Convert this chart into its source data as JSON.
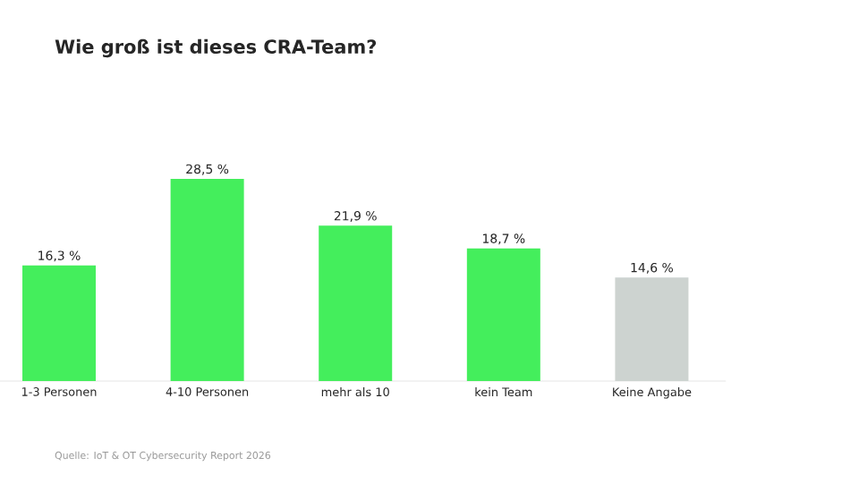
{
  "chart_data": {
    "type": "bar",
    "title": "Wie groß ist dieses CRA-Team?",
    "categories": [
      "1-3 Personen",
      "4-10 Personen",
      "mehr als 10",
      "kein Team",
      "Keine Angabe"
    ],
    "values": [
      16.3,
      28.5,
      21.9,
      18.7,
      14.6
    ],
    "value_labels": [
      "16,3 %",
      "28,5 %",
      "21,9 %",
      "18,7 %",
      "14,6 %"
    ],
    "colors": [
      "#44ee5c",
      "#44ee5c",
      "#44ee5c",
      "#44ee5c",
      "#cdd3d0"
    ],
    "annotations": [
      "Quelle: IoT & OT Cybersecurity Report 2026"
    ]
  }
}
